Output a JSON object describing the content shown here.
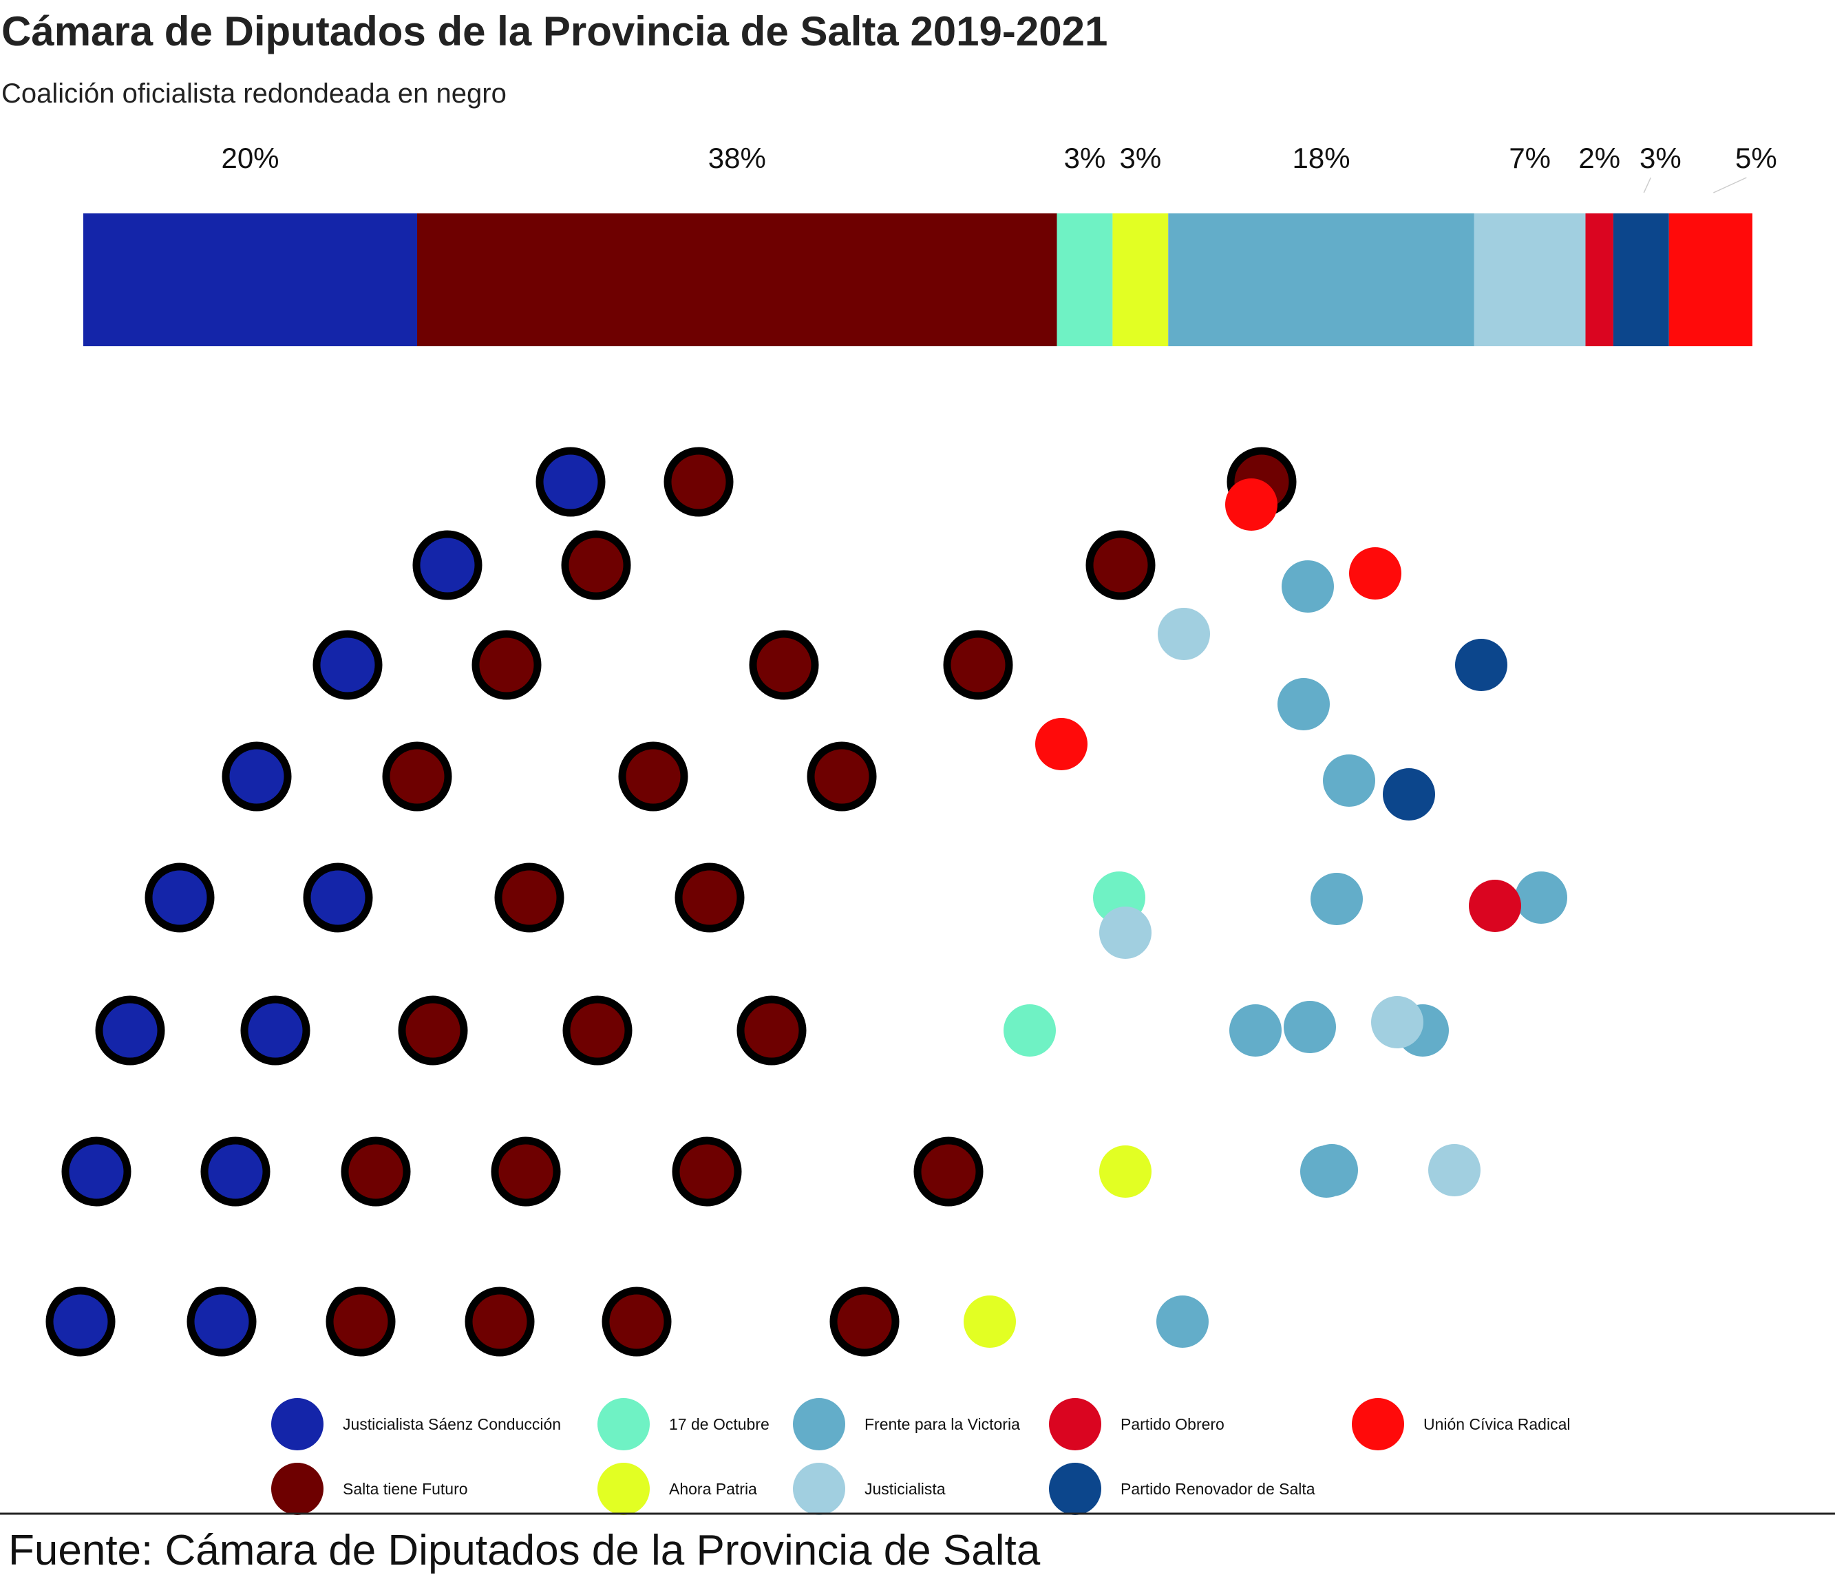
{
  "chart_data": {
    "type": "parliament",
    "title": "Cámara de Diputados de la Provincia de Salta 2019-2021",
    "subtitle": "Coalición oficialista redondeada en negro",
    "source": "Fuente: Cámara de Diputados de la Provincia de Salta",
    "total_seats": 60,
    "parties": [
      {
        "name": "Justicialista Sáenz Conducción",
        "seats": 12,
        "percent_label": "20%",
        "color": "#1425A9",
        "government": true
      },
      {
        "name": "Salta tiene Futuro",
        "seats": 23,
        "percent_label": "38%",
        "color": "#6E0000",
        "government": true
      },
      {
        "name": "17 de Octubre",
        "seats": 2,
        "percent_label": "3%",
        "color": "#6FF2C4",
        "government": false
      },
      {
        "name": "Ahora Patria",
        "seats": 2,
        "percent_label": "3%",
        "color": "#E2FF23",
        "government": false
      },
      {
        "name": "Frente para la Victoria",
        "seats": 11,
        "percent_label": "18%",
        "color": "#63ADC9",
        "government": false
      },
      {
        "name": "Justicialista",
        "seats": 4,
        "percent_label": "7%",
        "color": "#A1CFE0",
        "government": false
      },
      {
        "name": "Partido Obrero",
        "seats": 1,
        "percent_label": "2%",
        "color": "#DA0520",
        "government": false
      },
      {
        "name": "Partido Renovador de Salta",
        "seats": 2,
        "percent_label": "3%",
        "color": "#0C468C",
        "government": false
      },
      {
        "name": "Unión Cívica Radical",
        "seats": 3,
        "percent_label": "5%",
        "color": "#FF0A0A",
        "government": false
      }
    ],
    "legend_order": [
      "Justicialista Sáenz Conducción",
      "Salta tiene Futuro",
      "17 de Octubre",
      "Ahora Patria",
      "Frente para la Victoria",
      "Justicialista",
      "Partido Obrero",
      "Partido Renovador de Salta",
      "Unión Cívica Radical"
    ],
    "coalition_outline_color": "#000000"
  }
}
